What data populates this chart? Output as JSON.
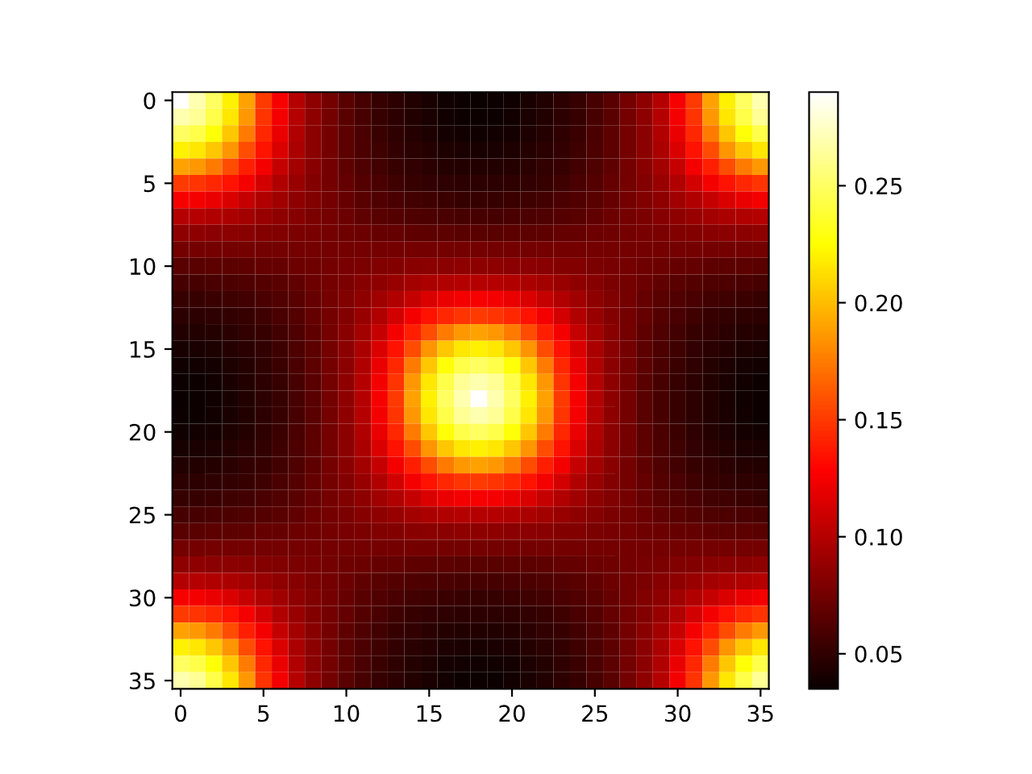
{
  "chart_data": {
    "type": "heatmap",
    "xlim": [
      -0.5,
      35.5
    ],
    "ylim": [
      35.5,
      -0.5
    ],
    "xticks": [
      0,
      5,
      10,
      15,
      20,
      25,
      30,
      35
    ],
    "yticks": [
      0,
      5,
      10,
      15,
      20,
      25,
      30,
      35
    ],
    "clim": [
      0.035,
      0.29
    ],
    "cticks": [
      0.05,
      {
        "value": 0.1,
        "label": "0.10"
      },
      0.15,
      {
        "value": 0.2,
        "label": "0.20"
      },
      0.25
    ],
    "cells": [
      [
        0.29,
        0.27,
        0.25,
        0.22,
        0.19,
        0.15,
        0.125,
        0.1,
        0.085,
        0.075,
        0.065,
        0.058,
        0.052,
        0.048,
        0.044,
        0.04,
        0.037,
        0.036,
        0.035,
        0.036,
        0.037,
        0.04,
        0.044,
        0.048,
        0.052,
        0.058,
        0.065,
        0.075,
        0.085,
        0.1,
        0.125,
        0.15,
        0.19,
        0.22,
        0.25,
        0.27
      ],
      [
        0.27,
        0.263,
        0.244,
        0.216,
        0.186,
        0.148,
        0.124,
        0.1,
        0.085,
        0.075,
        0.065,
        0.058,
        0.052,
        0.048,
        0.044,
        0.041,
        0.038,
        0.036,
        0.036,
        0.036,
        0.038,
        0.041,
        0.044,
        0.048,
        0.052,
        0.058,
        0.065,
        0.075,
        0.085,
        0.1,
        0.124,
        0.148,
        0.186,
        0.216,
        0.244,
        0.263
      ],
      [
        0.25,
        0.244,
        0.227,
        0.204,
        0.175,
        0.143,
        0.12,
        0.098,
        0.084,
        0.075,
        0.066,
        0.059,
        0.053,
        0.049,
        0.045,
        0.042,
        0.039,
        0.038,
        0.037,
        0.038,
        0.039,
        0.042,
        0.045,
        0.049,
        0.053,
        0.059,
        0.066,
        0.075,
        0.084,
        0.098,
        0.12,
        0.143,
        0.175,
        0.204,
        0.227,
        0.244
      ],
      [
        0.22,
        0.216,
        0.204,
        0.185,
        0.157,
        0.135,
        0.114,
        0.096,
        0.084,
        0.075,
        0.066,
        0.06,
        0.055,
        0.05,
        0.047,
        0.045,
        0.042,
        0.041,
        0.04,
        0.041,
        0.042,
        0.045,
        0.047,
        0.05,
        0.055,
        0.06,
        0.066,
        0.075,
        0.084,
        0.096,
        0.114,
        0.135,
        0.157,
        0.185,
        0.204,
        0.216
      ],
      [
        0.19,
        0.186,
        0.175,
        0.157,
        0.14,
        0.124,
        0.106,
        0.093,
        0.083,
        0.075,
        0.067,
        0.061,
        0.056,
        0.052,
        0.05,
        0.047,
        0.045,
        0.044,
        0.044,
        0.044,
        0.045,
        0.047,
        0.05,
        0.052,
        0.056,
        0.061,
        0.067,
        0.075,
        0.083,
        0.093,
        0.106,
        0.124,
        0.14,
        0.157,
        0.175,
        0.186
      ],
      [
        0.15,
        0.148,
        0.143,
        0.135,
        0.124,
        0.111,
        0.098,
        0.089,
        0.081,
        0.075,
        0.069,
        0.063,
        0.059,
        0.055,
        0.052,
        0.05,
        0.049,
        0.048,
        0.048,
        0.048,
        0.049,
        0.05,
        0.052,
        0.055,
        0.059,
        0.063,
        0.069,
        0.075,
        0.081,
        0.089,
        0.098,
        0.111,
        0.124,
        0.135,
        0.143,
        0.148
      ],
      [
        0.125,
        0.124,
        0.12,
        0.114,
        0.106,
        0.098,
        0.092,
        0.085,
        0.08,
        0.075,
        0.07,
        0.065,
        0.062,
        0.059,
        0.056,
        0.055,
        0.053,
        0.052,
        0.052,
        0.052,
        0.053,
        0.055,
        0.056,
        0.059,
        0.062,
        0.065,
        0.07,
        0.075,
        0.08,
        0.085,
        0.092,
        0.098,
        0.106,
        0.114,
        0.12,
        0.124
      ],
      [
        0.1,
        0.1,
        0.098,
        0.096,
        0.093,
        0.089,
        0.085,
        0.082,
        0.078,
        0.075,
        0.072,
        0.068,
        0.065,
        0.063,
        0.061,
        0.06,
        0.059,
        0.058,
        0.058,
        0.058,
        0.059,
        0.06,
        0.061,
        0.063,
        0.065,
        0.068,
        0.072,
        0.075,
        0.078,
        0.082,
        0.085,
        0.089,
        0.093,
        0.096,
        0.098,
        0.1
      ],
      [
        0.085,
        0.085,
        0.084,
        0.084,
        0.083,
        0.081,
        0.08,
        0.078,
        0.077,
        0.075,
        0.073,
        0.072,
        0.07,
        0.069,
        0.067,
        0.066,
        0.066,
        0.065,
        0.065,
        0.065,
        0.066,
        0.066,
        0.067,
        0.069,
        0.07,
        0.072,
        0.073,
        0.075,
        0.077,
        0.078,
        0.08,
        0.081,
        0.083,
        0.084,
        0.084,
        0.085
      ],
      [
        0.075,
        0.075,
        0.075,
        0.075,
        0.075,
        0.075,
        0.075,
        0.075,
        0.075,
        0.075,
        0.075,
        0.075,
        0.075,
        0.075,
        0.075,
        0.075,
        0.075,
        0.075,
        0.075,
        0.075,
        0.075,
        0.075,
        0.075,
        0.075,
        0.075,
        0.075,
        0.075,
        0.075,
        0.075,
        0.075,
        0.075,
        0.075,
        0.075,
        0.075,
        0.075,
        0.075
      ],
      [
        0.065,
        0.065,
        0.066,
        0.066,
        0.067,
        0.069,
        0.07,
        0.072,
        0.073,
        0.075,
        0.077,
        0.078,
        0.08,
        0.081,
        0.083,
        0.084,
        0.084,
        0.085,
        0.085,
        0.085,
        0.084,
        0.084,
        0.083,
        0.081,
        0.08,
        0.078,
        0.077,
        0.075,
        0.073,
        0.072,
        0.07,
        0.069,
        0.067,
        0.066,
        0.066,
        0.065
      ],
      [
        0.058,
        0.058,
        0.059,
        0.06,
        0.061,
        0.063,
        0.065,
        0.068,
        0.072,
        0.075,
        0.078,
        0.082,
        0.085,
        0.089,
        0.093,
        0.096,
        0.098,
        0.1,
        0.1,
        0.1,
        0.098,
        0.096,
        0.093,
        0.089,
        0.085,
        0.082,
        0.078,
        0.075,
        0.072,
        0.068,
        0.065,
        0.063,
        0.061,
        0.06,
        0.059,
        0.058
      ],
      [
        0.052,
        0.052,
        0.053,
        0.055,
        0.056,
        0.059,
        0.062,
        0.065,
        0.07,
        0.075,
        0.08,
        0.085,
        0.092,
        0.098,
        0.106,
        0.114,
        0.12,
        0.124,
        0.125,
        0.124,
        0.12,
        0.114,
        0.106,
        0.098,
        0.092,
        0.085,
        0.08,
        0.075,
        0.07,
        0.065,
        0.062,
        0.059,
        0.056,
        0.055,
        0.053,
        0.052
      ],
      [
        0.048,
        0.048,
        0.049,
        0.05,
        0.052,
        0.055,
        0.059,
        0.063,
        0.069,
        0.075,
        0.081,
        0.089,
        0.098,
        0.111,
        0.124,
        0.135,
        0.143,
        0.148,
        0.15,
        0.148,
        0.143,
        0.135,
        0.124,
        0.111,
        0.098,
        0.089,
        0.081,
        0.075,
        0.069,
        0.063,
        0.059,
        0.055,
        0.052,
        0.05,
        0.049,
        0.048
      ],
      [
        0.044,
        0.044,
        0.045,
        0.047,
        0.05,
        0.052,
        0.056,
        0.061,
        0.067,
        0.075,
        0.083,
        0.093,
        0.106,
        0.124,
        0.14,
        0.157,
        0.175,
        0.186,
        0.19,
        0.186,
        0.175,
        0.157,
        0.14,
        0.124,
        0.106,
        0.093,
        0.083,
        0.075,
        0.067,
        0.061,
        0.056,
        0.052,
        0.05,
        0.047,
        0.045,
        0.044
      ],
      [
        0.04,
        0.041,
        0.042,
        0.045,
        0.047,
        0.05,
        0.055,
        0.06,
        0.066,
        0.075,
        0.084,
        0.096,
        0.114,
        0.135,
        0.157,
        0.185,
        0.204,
        0.216,
        0.22,
        0.216,
        0.204,
        0.185,
        0.157,
        0.135,
        0.114,
        0.096,
        0.084,
        0.075,
        0.066,
        0.06,
        0.055,
        0.05,
        0.047,
        0.045,
        0.042,
        0.041
      ],
      [
        0.037,
        0.038,
        0.039,
        0.042,
        0.045,
        0.049,
        0.053,
        0.059,
        0.066,
        0.075,
        0.084,
        0.098,
        0.12,
        0.143,
        0.175,
        0.204,
        0.227,
        0.244,
        0.25,
        0.244,
        0.227,
        0.204,
        0.175,
        0.143,
        0.12,
        0.098,
        0.084,
        0.075,
        0.066,
        0.059,
        0.053,
        0.049,
        0.045,
        0.042,
        0.039,
        0.038
      ],
      [
        0.036,
        0.036,
        0.038,
        0.041,
        0.044,
        0.048,
        0.052,
        0.058,
        0.065,
        0.075,
        0.085,
        0.1,
        0.124,
        0.148,
        0.186,
        0.216,
        0.244,
        0.263,
        0.27,
        0.263,
        0.244,
        0.216,
        0.186,
        0.148,
        0.124,
        0.1,
        0.085,
        0.075,
        0.065,
        0.058,
        0.052,
        0.048,
        0.044,
        0.041,
        0.038,
        0.036
      ],
      [
        0.035,
        0.036,
        0.037,
        0.04,
        0.044,
        0.048,
        0.052,
        0.058,
        0.065,
        0.075,
        0.085,
        0.1,
        0.125,
        0.15,
        0.19,
        0.22,
        0.25,
        0.27,
        0.29,
        0.27,
        0.25,
        0.22,
        0.19,
        0.15,
        0.125,
        0.1,
        0.085,
        0.075,
        0.065,
        0.058,
        0.052,
        0.048,
        0.044,
        0.04,
        0.037,
        0.036
      ],
      [
        0.036,
        0.036,
        0.038,
        0.041,
        0.044,
        0.048,
        0.052,
        0.058,
        0.065,
        0.075,
        0.085,
        0.1,
        0.124,
        0.148,
        0.186,
        0.216,
        0.244,
        0.263,
        0.27,
        0.263,
        0.244,
        0.216,
        0.186,
        0.148,
        0.124,
        0.1,
        0.085,
        0.075,
        0.065,
        0.058,
        0.052,
        0.048,
        0.044,
        0.041,
        0.038,
        0.036
      ],
      [
        0.037,
        0.038,
        0.039,
        0.042,
        0.045,
        0.049,
        0.053,
        0.059,
        0.066,
        0.075,
        0.084,
        0.098,
        0.12,
        0.143,
        0.175,
        0.204,
        0.227,
        0.244,
        0.25,
        0.244,
        0.227,
        0.204,
        0.175,
        0.143,
        0.12,
        0.098,
        0.084,
        0.075,
        0.066,
        0.059,
        0.053,
        0.049,
        0.045,
        0.042,
        0.039,
        0.038
      ],
      [
        0.04,
        0.041,
        0.042,
        0.045,
        0.047,
        0.05,
        0.055,
        0.06,
        0.066,
        0.075,
        0.084,
        0.096,
        0.114,
        0.135,
        0.157,
        0.185,
        0.204,
        0.216,
        0.22,
        0.216,
        0.204,
        0.185,
        0.157,
        0.135,
        0.114,
        0.096,
        0.084,
        0.075,
        0.066,
        0.06,
        0.055,
        0.05,
        0.047,
        0.045,
        0.042,
        0.041
      ],
      [
        0.044,
        0.044,
        0.045,
        0.047,
        0.05,
        0.052,
        0.056,
        0.061,
        0.067,
        0.075,
        0.083,
        0.093,
        0.106,
        0.124,
        0.14,
        0.157,
        0.175,
        0.186,
        0.19,
        0.186,
        0.175,
        0.157,
        0.14,
        0.124,
        0.106,
        0.093,
        0.083,
        0.075,
        0.067,
        0.061,
        0.056,
        0.052,
        0.05,
        0.047,
        0.045,
        0.044
      ],
      [
        0.048,
        0.048,
        0.049,
        0.05,
        0.052,
        0.055,
        0.059,
        0.063,
        0.069,
        0.075,
        0.081,
        0.089,
        0.098,
        0.111,
        0.124,
        0.135,
        0.143,
        0.148,
        0.15,
        0.148,
        0.143,
        0.135,
        0.124,
        0.111,
        0.098,
        0.089,
        0.081,
        0.075,
        0.069,
        0.063,
        0.059,
        0.055,
        0.052,
        0.05,
        0.049,
        0.048
      ],
      [
        0.052,
        0.052,
        0.053,
        0.055,
        0.056,
        0.059,
        0.062,
        0.065,
        0.07,
        0.075,
        0.08,
        0.085,
        0.092,
        0.098,
        0.106,
        0.114,
        0.12,
        0.124,
        0.125,
        0.124,
        0.12,
        0.114,
        0.106,
        0.098,
        0.092,
        0.085,
        0.08,
        0.075,
        0.07,
        0.065,
        0.062,
        0.059,
        0.056,
        0.055,
        0.053,
        0.052
      ],
      [
        0.058,
        0.058,
        0.059,
        0.06,
        0.061,
        0.063,
        0.065,
        0.068,
        0.072,
        0.075,
        0.078,
        0.082,
        0.085,
        0.089,
        0.093,
        0.096,
        0.098,
        0.1,
        0.1,
        0.1,
        0.098,
        0.096,
        0.093,
        0.089,
        0.085,
        0.082,
        0.078,
        0.075,
        0.072,
        0.068,
        0.065,
        0.063,
        0.061,
        0.06,
        0.059,
        0.058
      ],
      [
        0.065,
        0.065,
        0.066,
        0.066,
        0.067,
        0.069,
        0.07,
        0.072,
        0.073,
        0.075,
        0.077,
        0.078,
        0.08,
        0.081,
        0.083,
        0.084,
        0.084,
        0.085,
        0.085,
        0.085,
        0.084,
        0.084,
        0.083,
        0.081,
        0.08,
        0.078,
        0.077,
        0.075,
        0.073,
        0.072,
        0.07,
        0.069,
        0.067,
        0.066,
        0.066,
        0.065
      ],
      [
        0.075,
        0.075,
        0.075,
        0.075,
        0.075,
        0.075,
        0.075,
        0.075,
        0.075,
        0.075,
        0.075,
        0.075,
        0.075,
        0.075,
        0.075,
        0.075,
        0.075,
        0.075,
        0.075,
        0.075,
        0.075,
        0.075,
        0.075,
        0.075,
        0.075,
        0.075,
        0.075,
        0.075,
        0.075,
        0.075,
        0.075,
        0.075,
        0.075,
        0.075,
        0.075,
        0.075
      ],
      [
        0.085,
        0.085,
        0.084,
        0.084,
        0.083,
        0.081,
        0.08,
        0.078,
        0.077,
        0.075,
        0.073,
        0.072,
        0.07,
        0.069,
        0.067,
        0.066,
        0.066,
        0.065,
        0.065,
        0.065,
        0.066,
        0.066,
        0.067,
        0.069,
        0.07,
        0.072,
        0.073,
        0.075,
        0.077,
        0.078,
        0.08,
        0.081,
        0.083,
        0.084,
        0.084,
        0.085
      ],
      [
        0.1,
        0.1,
        0.098,
        0.096,
        0.093,
        0.089,
        0.085,
        0.082,
        0.078,
        0.075,
        0.072,
        0.068,
        0.065,
        0.063,
        0.061,
        0.06,
        0.059,
        0.058,
        0.058,
        0.058,
        0.059,
        0.06,
        0.061,
        0.063,
        0.065,
        0.068,
        0.072,
        0.075,
        0.078,
        0.082,
        0.085,
        0.089,
        0.093,
        0.096,
        0.098,
        0.1
      ],
      [
        0.125,
        0.124,
        0.12,
        0.114,
        0.106,
        0.098,
        0.092,
        0.085,
        0.08,
        0.075,
        0.07,
        0.065,
        0.062,
        0.059,
        0.056,
        0.055,
        0.053,
        0.052,
        0.052,
        0.052,
        0.053,
        0.055,
        0.056,
        0.059,
        0.062,
        0.065,
        0.07,
        0.075,
        0.08,
        0.085,
        0.092,
        0.098,
        0.106,
        0.114,
        0.12,
        0.124
      ],
      [
        0.15,
        0.148,
        0.143,
        0.135,
        0.124,
        0.111,
        0.098,
        0.089,
        0.081,
        0.075,
        0.069,
        0.063,
        0.059,
        0.055,
        0.052,
        0.05,
        0.049,
        0.048,
        0.048,
        0.048,
        0.049,
        0.05,
        0.052,
        0.055,
        0.059,
        0.063,
        0.069,
        0.075,
        0.081,
        0.089,
        0.098,
        0.111,
        0.124,
        0.135,
        0.143,
        0.148
      ],
      [
        0.19,
        0.186,
        0.175,
        0.157,
        0.14,
        0.124,
        0.106,
        0.093,
        0.083,
        0.075,
        0.067,
        0.061,
        0.056,
        0.052,
        0.05,
        0.047,
        0.045,
        0.044,
        0.044,
        0.044,
        0.045,
        0.047,
        0.05,
        0.052,
        0.056,
        0.061,
        0.067,
        0.075,
        0.083,
        0.093,
        0.106,
        0.124,
        0.14,
        0.157,
        0.175,
        0.186
      ],
      [
        0.22,
        0.216,
        0.204,
        0.185,
        0.157,
        0.135,
        0.114,
        0.096,
        0.084,
        0.075,
        0.066,
        0.06,
        0.055,
        0.05,
        0.047,
        0.045,
        0.042,
        0.041,
        0.04,
        0.041,
        0.042,
        0.045,
        0.047,
        0.05,
        0.055,
        0.06,
        0.066,
        0.075,
        0.084,
        0.096,
        0.114,
        0.135,
        0.157,
        0.185,
        0.204,
        0.216
      ],
      [
        0.25,
        0.244,
        0.227,
        0.204,
        0.175,
        0.143,
        0.12,
        0.098,
        0.084,
        0.075,
        0.066,
        0.059,
        0.053,
        0.049,
        0.045,
        0.042,
        0.039,
        0.038,
        0.037,
        0.038,
        0.039,
        0.042,
        0.045,
        0.049,
        0.053,
        0.059,
        0.066,
        0.075,
        0.084,
        0.098,
        0.12,
        0.143,
        0.175,
        0.204,
        0.227,
        0.244
      ],
      [
        0.27,
        0.263,
        0.244,
        0.216,
        0.186,
        0.148,
        0.124,
        0.1,
        0.085,
        0.075,
        0.065,
        0.058,
        0.052,
        0.048,
        0.044,
        0.041,
        0.038,
        0.036,
        0.036,
        0.036,
        0.038,
        0.041,
        0.044,
        0.048,
        0.052,
        0.058,
        0.065,
        0.075,
        0.085,
        0.1,
        0.124,
        0.148,
        0.186,
        0.216,
        0.244,
        0.263
      ]
    ]
  }
}
